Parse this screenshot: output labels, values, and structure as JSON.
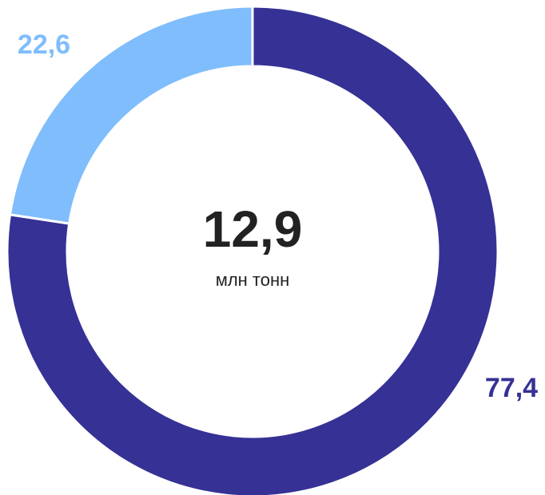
{
  "chart_data": {
    "type": "donut",
    "values": [
      77.4,
      22.6
    ],
    "value_labels": [
      "77,4",
      "22,6"
    ],
    "colors": [
      "#363195",
      "#80bdfc"
    ],
    "center_value": "12,9",
    "center_unit": "млн тонн"
  }
}
